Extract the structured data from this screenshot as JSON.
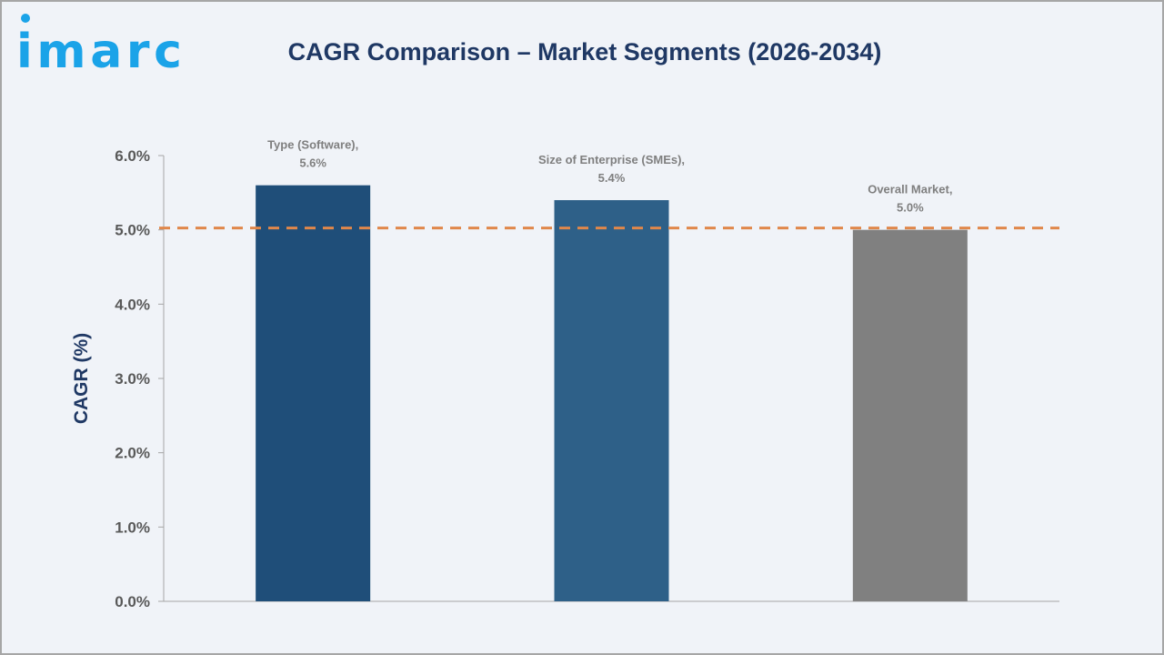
{
  "brand": {
    "logo_text": "imarc",
    "logo_color": "#1aa3e8"
  },
  "chart_data": {
    "type": "bar",
    "title": "CAGR Comparison – Market Segments (2026-2034)",
    "xlabel": "",
    "ylabel": "CAGR (%)",
    "ylim": [
      0,
      6
    ],
    "yticks": [
      "0.0%",
      "1.0%",
      "2.0%",
      "3.0%",
      "4.0%",
      "5.0%",
      "6.0%"
    ],
    "categories": [
      "Type (Software)",
      "Size of Enterprise (SMEs)",
      "Overall Market"
    ],
    "values": [
      5.6,
      5.4,
      5.0
    ],
    "data_labels": [
      [
        "Type (Software),",
        "5.6%"
      ],
      [
        "Size of Enterprise (SMEs),",
        "5.4%"
      ],
      [
        "Overall Market,",
        "5.0%"
      ]
    ],
    "colors": [
      "#1f4e79",
      "#2e6088",
      "#808080"
    ],
    "reference_line": {
      "value": 5.0,
      "style": "dashed",
      "color": "#e0874a"
    },
    "grid": false,
    "legend": "none"
  }
}
